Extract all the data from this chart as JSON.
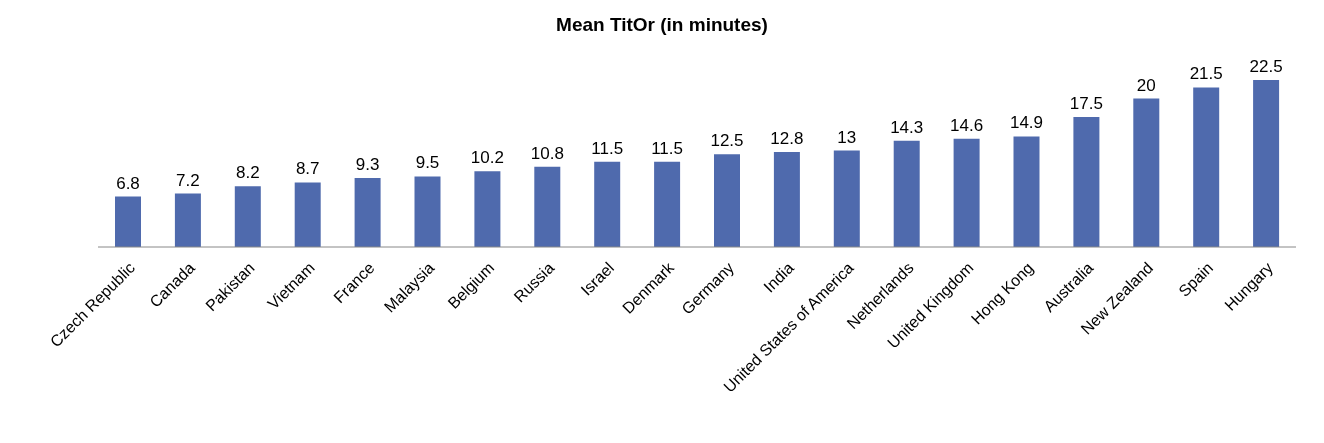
{
  "chart_data": {
    "type": "bar",
    "title": "Mean TitOr (in minutes)",
    "categories": [
      "Czech Republic",
      "Canada",
      "Pakistan",
      "Vietnam",
      "France",
      "Malaysia",
      "Belgium",
      "Russia",
      "Israel",
      "Denmark",
      "Germany",
      "India",
      "United States of America",
      "Netherlands",
      "United Kingdom",
      "Hong Kong",
      "Australia",
      "New Zealand",
      "Spain",
      "Hungary"
    ],
    "values": [
      6.8,
      7.2,
      8.2,
      8.7,
      9.3,
      9.5,
      10.2,
      10.8,
      11.5,
      11.5,
      12.5,
      12.8,
      13,
      14.3,
      14.6,
      14.9,
      17.5,
      20,
      21.5,
      22.5
    ],
    "color": "#4f6aad",
    "data_labels": true,
    "grid": false,
    "legend": false
  }
}
